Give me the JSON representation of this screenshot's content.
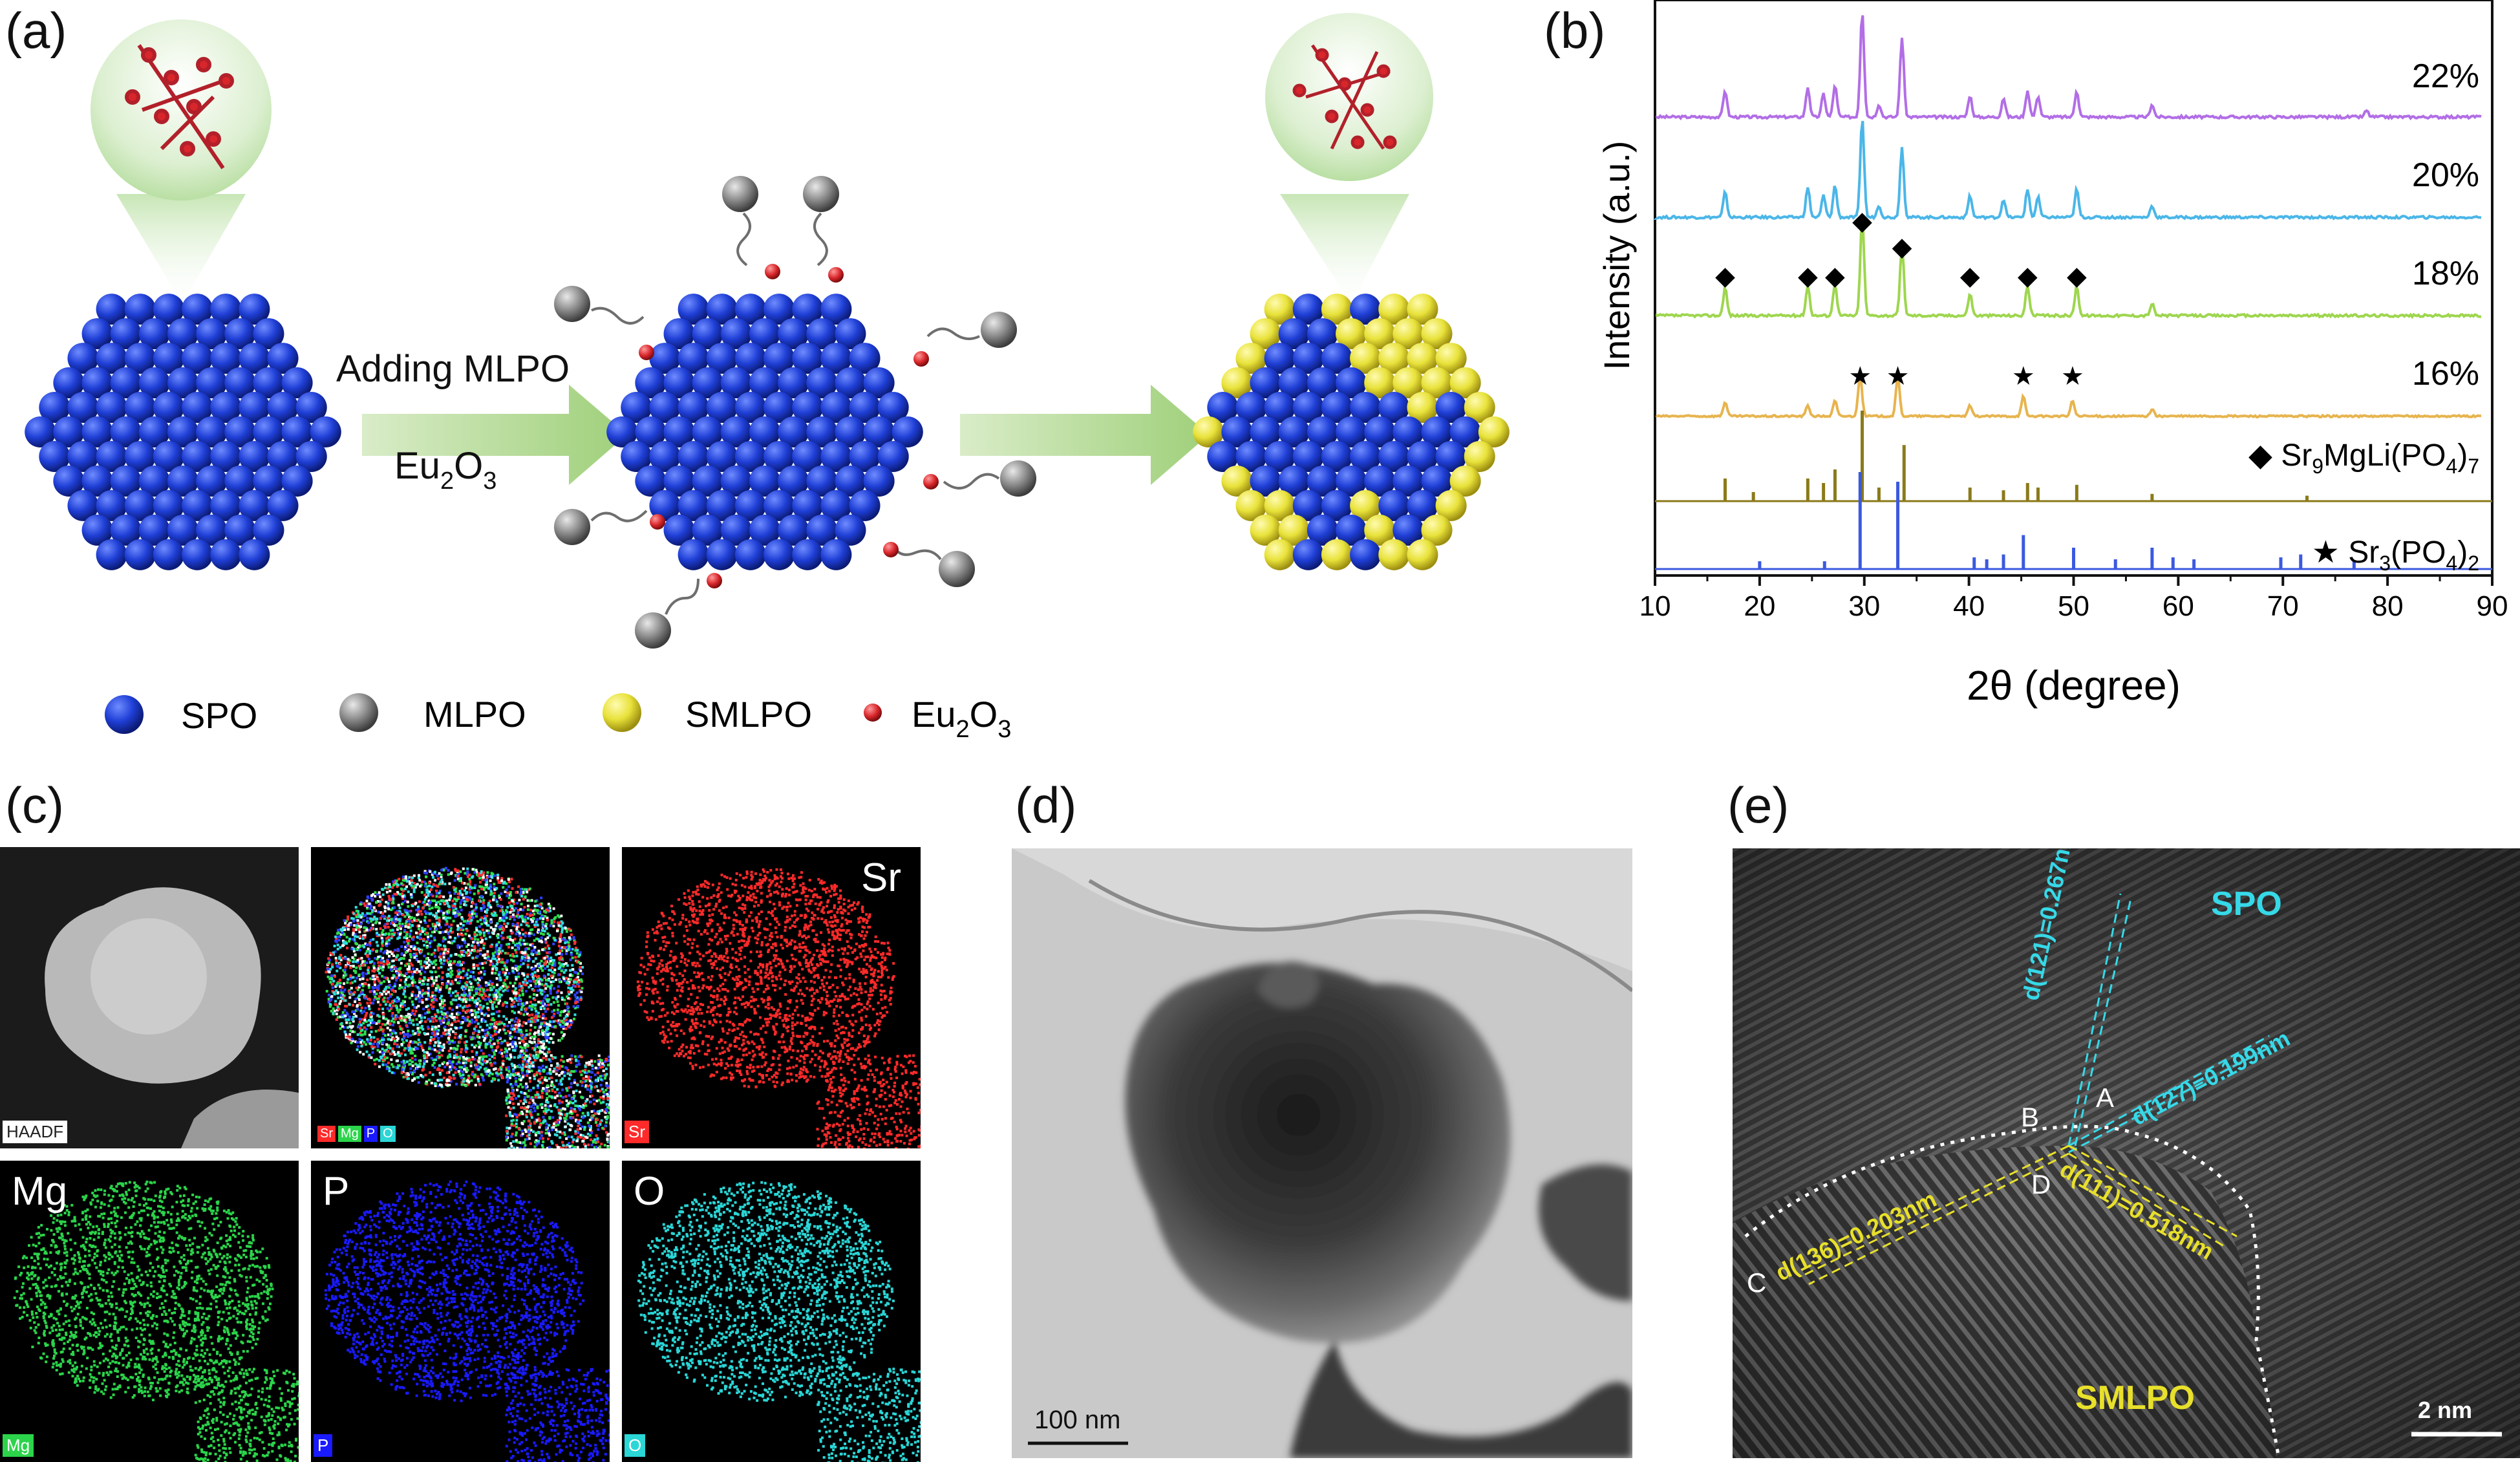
{
  "panel_labels": {
    "a": "(a)",
    "b": "(b)",
    "c": "(c)",
    "d": "(d)",
    "e": "(e)"
  },
  "panel_a": {
    "step_label_1": "Adding MLPO",
    "step_label_2_main": "Eu",
    "step_label_2_sub1": "2",
    "step_label_2_mid": "O",
    "step_label_2_sub2": "3",
    "legend": [
      {
        "label": "SPO",
        "color": "#1f3fd6"
      },
      {
        "label": "MLPO",
        "color": "#8a8a8a"
      },
      {
        "label": "SMLPO",
        "color": "#e8e23a"
      },
      {
        "label": "Eu",
        "sub1": "2",
        "mid": "O",
        "sub2": "3",
        "color": "#d8262b"
      }
    ]
  },
  "chart_data": {
    "type": "line",
    "xlabel": "2θ (degree)",
    "ylabel": "Intensity (a.u.)",
    "xlim": [
      10,
      90
    ],
    "xticks": [
      10,
      20,
      30,
      40,
      50,
      60,
      70,
      80,
      90
    ],
    "series": [
      {
        "name": "22%",
        "color": "#b26ee6",
        "peaks": [
          [
            16.7,
            0.25
          ],
          [
            24.6,
            0.28
          ],
          [
            26.1,
            0.22
          ],
          [
            27.2,
            0.3
          ],
          [
            29.8,
            1.0
          ],
          [
            31.4,
            0.12
          ],
          [
            33.6,
            0.75
          ],
          [
            40.1,
            0.2
          ],
          [
            43.3,
            0.18
          ],
          [
            45.6,
            0.25
          ],
          [
            46.6,
            0.2
          ],
          [
            50.3,
            0.25
          ],
          [
            57.5,
            0.12
          ],
          [
            78,
            0.06
          ]
        ]
      },
      {
        "name": "20%",
        "color": "#4bb6e8",
        "peaks": [
          [
            16.7,
            0.25
          ],
          [
            24.6,
            0.3
          ],
          [
            26.1,
            0.22
          ],
          [
            27.2,
            0.32
          ],
          [
            29.8,
            1.0
          ],
          [
            31.4,
            0.12
          ],
          [
            33.6,
            0.7
          ],
          [
            40.1,
            0.22
          ],
          [
            43.3,
            0.18
          ],
          [
            45.6,
            0.28
          ],
          [
            46.6,
            0.2
          ],
          [
            50.3,
            0.28
          ],
          [
            57.5,
            0.12
          ]
        ]
      },
      {
        "name": "18%",
        "color": "#9ed64e",
        "peaks": [
          [
            16.7,
            0.28
          ],
          [
            24.6,
            0.3
          ],
          [
            27.2,
            0.32
          ],
          [
            29.8,
            1.0
          ],
          [
            33.6,
            0.7
          ],
          [
            40.1,
            0.22
          ],
          [
            45.6,
            0.3
          ],
          [
            50.3,
            0.3
          ],
          [
            57.5,
            0.12
          ]
        ]
      },
      {
        "name": "16%",
        "color": "#e7b44e",
        "peaks": [
          [
            16.7,
            0.2
          ],
          [
            24.6,
            0.15
          ],
          [
            27.2,
            0.22
          ],
          [
            29.6,
            0.6
          ],
          [
            33.2,
            0.55
          ],
          [
            40.1,
            0.15
          ],
          [
            45.2,
            0.28
          ],
          [
            49.9,
            0.22
          ],
          [
            57.5,
            0.1
          ]
        ]
      },
      {
        "name": "Sr9MgLi(PO4)7 reference",
        "color": "#8a7a1a",
        "peaks": [
          [
            16.7,
            0.25
          ],
          [
            19.4,
            0.1
          ],
          [
            24.6,
            0.25
          ],
          [
            26.1,
            0.2
          ],
          [
            27.2,
            0.35
          ],
          [
            29.8,
            1.0
          ],
          [
            31.4,
            0.15
          ],
          [
            33.8,
            0.62
          ],
          [
            40.1,
            0.15
          ],
          [
            43.3,
            0.12
          ],
          [
            45.6,
            0.2
          ],
          [
            46.6,
            0.15
          ],
          [
            50.3,
            0.18
          ],
          [
            57.5,
            0.08
          ],
          [
            72.3,
            0.06
          ]
        ]
      },
      {
        "name": "Sr3(PO4)2 reference",
        "color": "#3b59e0",
        "peaks": [
          [
            20,
            0.08
          ],
          [
            26.2,
            0.08
          ],
          [
            29.6,
            1.0
          ],
          [
            33.2,
            0.9
          ],
          [
            40.5,
            0.12
          ],
          [
            41.7,
            0.1
          ],
          [
            43.3,
            0.15
          ],
          [
            45.2,
            0.35
          ],
          [
            50,
            0.22
          ],
          [
            54,
            0.1
          ],
          [
            57.5,
            0.22
          ],
          [
            59.5,
            0.12
          ],
          [
            61.5,
            0.1
          ],
          [
            69.8,
            0.12
          ],
          [
            71.7,
            0.15
          ],
          [
            76.8,
            0.08
          ]
        ]
      }
    ],
    "series_labels": [
      "22%",
      "20%",
      "18%",
      "16%"
    ],
    "ref_labels": [
      {
        "marker": "◆",
        "pre": "Sr",
        "s1": "9",
        "mid": "MgLi(PO",
        "s2": "4",
        "post": ")",
        "s3": "7"
      },
      {
        "marker": "★",
        "pre": "Sr",
        "s1": "3",
        "mid": "(PO",
        "s2": "4",
        "post": ")",
        "s3": "2"
      }
    ],
    "diamond_positions": [
      16.7,
      24.6,
      27.2,
      29.8,
      33.6,
      40.1,
      45.6,
      50.3
    ],
    "star_positions": [
      29.6,
      33.2,
      45.2,
      49.9
    ]
  },
  "panel_c": {
    "tiles": [
      {
        "label": "HAADF",
        "color": "#cfcfcf",
        "text_color": "#222"
      },
      {
        "label": "Sr Mg P O",
        "color": "#ff2a2a",
        "text_color": "#fff"
      },
      {
        "label": "Sr",
        "color": "#ff2a2a",
        "text_color": "#fff"
      },
      {
        "label": "Mg",
        "color": "#2bd44a",
        "text_color": "#fff"
      },
      {
        "label": "P",
        "color": "#1a1aff",
        "text_color": "#fff"
      },
      {
        "label": "O",
        "color": "#2ad6d6",
        "text_color": "#fff"
      }
    ],
    "big_labels": [
      "Sr",
      "Mg",
      "P",
      "O"
    ],
    "merged_legend": [
      "Sr",
      "Mg",
      "P",
      "O"
    ]
  },
  "panel_d": {
    "scale_bar": "100 nm"
  },
  "panel_e": {
    "labels": {
      "spo": "SPO",
      "smlpo": "SMLPO",
      "d121": "d(121)=0.267nm",
      "d127": "d(127)=0.199nm",
      "d136": "d(136)=0.203nm",
      "d111": "d(111)=0.518nm",
      "A": "A",
      "B": "B",
      "C": "C",
      "D": "D"
    },
    "scale_bar": "2 nm"
  }
}
